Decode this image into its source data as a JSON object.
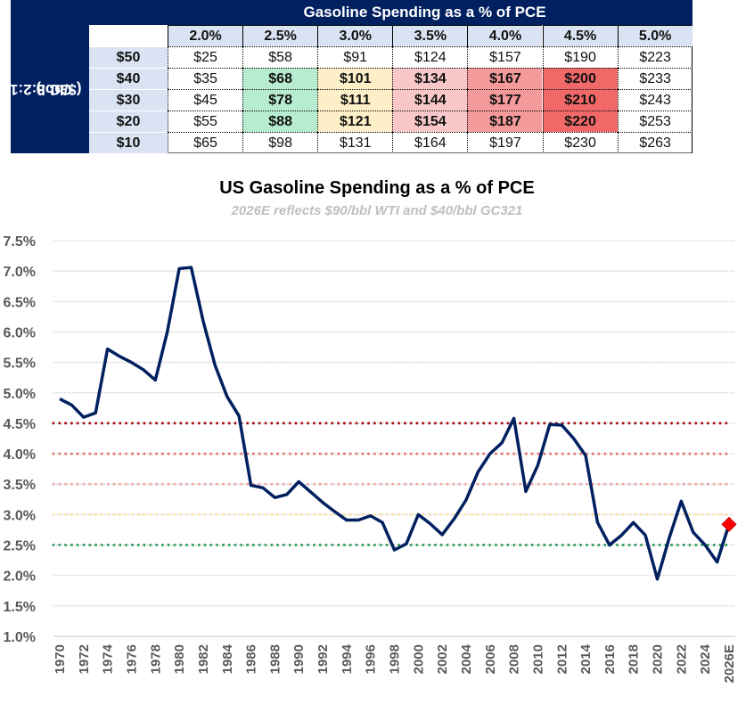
{
  "table": {
    "title": "Gasoline Spending as a % of PCE",
    "row_axis_label_line1": "GC 3:2:1",
    "row_axis_label_line2": "($/bbl)",
    "columns": [
      "2.0%",
      "2.5%",
      "3.0%",
      "3.5%",
      "4.0%",
      "4.5%",
      "5.0%"
    ],
    "rows": [
      {
        "label": "$50",
        "values": [
          "$25",
          "$58",
          "$91",
          "$124",
          "$157",
          "$190",
          "$223"
        ],
        "highlight": [
          false,
          false,
          false,
          false,
          false,
          false,
          false
        ]
      },
      {
        "label": "$40",
        "values": [
          "$35",
          "$68",
          "$101",
          "$134",
          "$167",
          "$200",
          "$233"
        ],
        "highlight": [
          false,
          true,
          true,
          true,
          true,
          true,
          false
        ]
      },
      {
        "label": "$30",
        "values": [
          "$45",
          "$78",
          "$111",
          "$144",
          "$177",
          "$210",
          "$243"
        ],
        "highlight": [
          false,
          true,
          true,
          true,
          true,
          true,
          false
        ]
      },
      {
        "label": "$20",
        "values": [
          "$55",
          "$88",
          "$121",
          "$154",
          "$187",
          "$220",
          "$253"
        ],
        "highlight": [
          false,
          true,
          true,
          true,
          true,
          true,
          false
        ]
      },
      {
        "label": "$10",
        "values": [
          "$65",
          "$98",
          "$131",
          "$164",
          "$197",
          "$230",
          "$263"
        ],
        "highlight": [
          false,
          false,
          false,
          false,
          false,
          false,
          false
        ]
      }
    ],
    "column_colors": [
      "#ffffff",
      "#b7ecd0",
      "#fdefc7",
      "#f8c8c8",
      "#f59a9a",
      "#f06868",
      "#ffffff"
    ],
    "header_color": "#002060",
    "subheader_color": "#dae3f3"
  },
  "chart_data": {
    "type": "line",
    "title": "US Gasoline Spending as a % of PCE",
    "subtitle": "2026E reflects $90/bbl WTI and $40/bbl GC321",
    "xlabel": "",
    "ylabel": "",
    "ylim": [
      1.0,
      7.5
    ],
    "yticks": [
      1.0,
      1.5,
      2.0,
      2.5,
      3.0,
      3.5,
      4.0,
      4.5,
      5.0,
      5.5,
      6.0,
      6.5,
      7.0,
      7.5
    ],
    "ytick_labels": [
      "1.0%",
      "1.5%",
      "2.0%",
      "2.5%",
      "3.0%",
      "3.5%",
      "4.0%",
      "4.5%",
      "5.0%",
      "5.5%",
      "6.0%",
      "6.5%",
      "7.0%",
      "7.5%"
    ],
    "grid": true,
    "x": [
      1970,
      1971,
      1972,
      1973,
      1974,
      1975,
      1976,
      1977,
      1978,
      1979,
      1980,
      1981,
      1982,
      1983,
      1984,
      1985,
      1986,
      1987,
      1988,
      1989,
      1990,
      1991,
      1992,
      1993,
      1994,
      1995,
      1996,
      1997,
      1998,
      1999,
      2000,
      2001,
      2002,
      2003,
      2004,
      2005,
      2006,
      2007,
      2008,
      2009,
      2010,
      2011,
      2012,
      2013,
      2014,
      2015,
      2016,
      2017,
      2018,
      2019,
      2020,
      2021,
      2022,
      2023,
      2024,
      2025
    ],
    "xtick_labels": [
      "1970",
      "1972",
      "1974",
      "1976",
      "1978",
      "1980",
      "1982",
      "1984",
      "1986",
      "1988",
      "1990",
      "1992",
      "1994",
      "1996",
      "1998",
      "2000",
      "2002",
      "2004",
      "2006",
      "2008",
      "2010",
      "2012",
      "2014",
      "2016",
      "2018",
      "2020",
      "2022",
      "2024",
      "2026E"
    ],
    "series": [
      {
        "name": "US Gasoline Spending as a % of PCE",
        "color": "#002060",
        "values": [
          4.9,
          4.8,
          4.6,
          4.67,
          5.72,
          5.6,
          5.5,
          5.38,
          5.21,
          6.0,
          7.04,
          7.06,
          6.18,
          5.45,
          4.94,
          4.62,
          3.48,
          3.44,
          3.28,
          3.33,
          3.54,
          3.37,
          3.2,
          3.05,
          2.91,
          2.91,
          2.98,
          2.87,
          2.42,
          2.52,
          3.0,
          2.85,
          2.67,
          2.93,
          3.24,
          3.7,
          4.0,
          4.18,
          4.58,
          3.38,
          3.81,
          4.48,
          4.47,
          4.25,
          3.97,
          2.87,
          2.5,
          2.66,
          2.87,
          2.66,
          1.94,
          2.62,
          3.22,
          2.71,
          2.5,
          2.22
        ]
      }
    ],
    "estimate": {
      "label": "2026E",
      "x": 2026,
      "value": 2.84,
      "color": "#ff0000",
      "marker": "diamond"
    },
    "reference_lines": [
      {
        "value": 4.5,
        "color": "#a50f15"
      },
      {
        "value": 4.0,
        "color": "#e57373"
      },
      {
        "value": 3.5,
        "color": "#f0a8a8"
      },
      {
        "value": 3.0,
        "color": "#fbe3a6"
      },
      {
        "value": 2.5,
        "color": "#2e9e5b"
      }
    ]
  }
}
